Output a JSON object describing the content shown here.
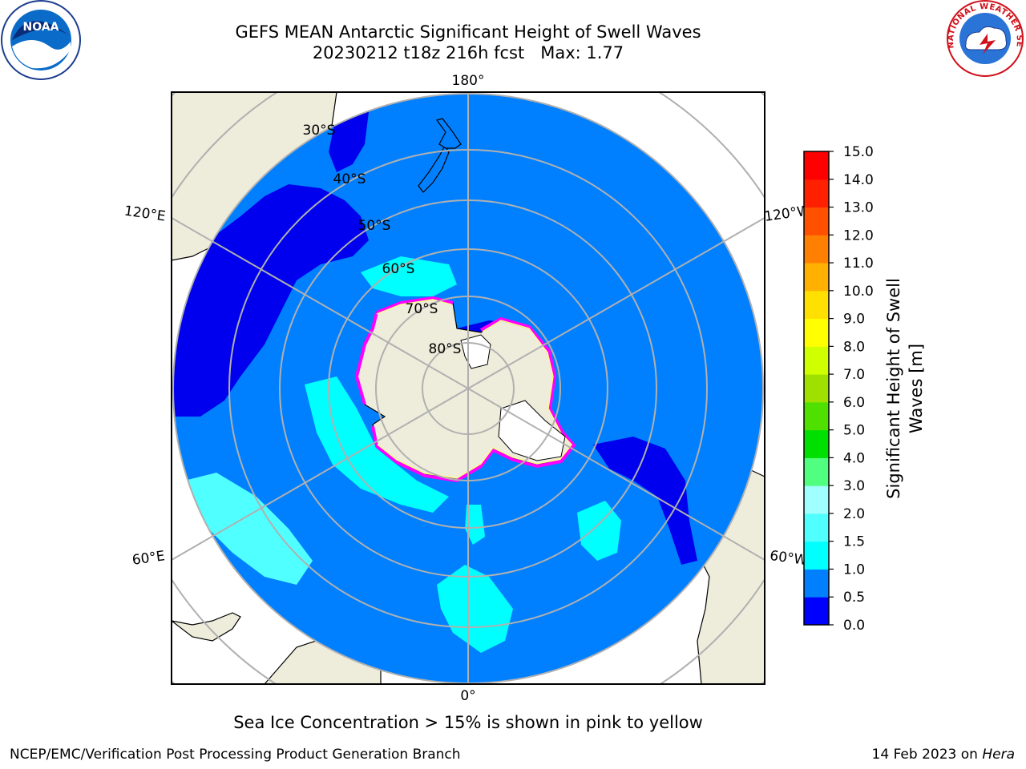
{
  "header": {
    "title_line1": "GEFS MEAN Antarctic Significant Height of Swell Waves",
    "title_line2": "20230212 t18z 216h fcst   Max: 1.77"
  },
  "logos": {
    "left": {
      "text": "NOAA",
      "icon": "noaa-logo-icon"
    },
    "right": {
      "text": "NATIONAL WEATHER SERVICE",
      "icon": "nws-logo-icon"
    }
  },
  "map": {
    "projection": "south-polar-stereographic",
    "longitude_labels": {
      "top": "180°",
      "bottom": "0°",
      "left_upper": "120°E",
      "left_lower": "60°E",
      "right_upper": "120°W",
      "right_lower": "60°W"
    },
    "latitude_labels": [
      "30°S",
      "40°S",
      "50°S",
      "60°S",
      "70°S",
      "80°S"
    ],
    "colors": {
      "land": "#eeecdb",
      "grid": "#b0b0b0",
      "ocean_main": "#0080ff",
      "ocean_low": "#0000ee",
      "ocean_mid": "#00ffff",
      "ocean_light": "#50ffff",
      "ice_pink": "#ff00ff",
      "ice_yellow": "#ffff00"
    }
  },
  "colorbar": {
    "label": "Significant Height of Swell Waves [m]",
    "label_line1": "Significant Height of Swell",
    "label_line2": "Waves [m]",
    "ticks": [
      "0.0",
      "0.5",
      "1.0",
      "1.5",
      "2.0",
      "3.0",
      "4.0",
      "5.0",
      "6.0",
      "7.0",
      "8.0",
      "9.0",
      "10.0",
      "11.0",
      "12.0",
      "13.0",
      "14.0",
      "15.0"
    ],
    "colors": [
      "#0000ff",
      "#0080ff",
      "#00ffff",
      "#50ffff",
      "#a0ffff",
      "#50ff80",
      "#00e000",
      "#50e000",
      "#a0e000",
      "#d0ff00",
      "#ffff00",
      "#ffe000",
      "#ffb000",
      "#ff8000",
      "#ff5000",
      "#ff2000",
      "#ff0000"
    ]
  },
  "footer": {
    "note": "Sea Ice Concentration > 15% is shown in pink to yellow",
    "left": "NCEP/EMC/Verification Post Processing Product Generation Branch",
    "right_date": "14 Feb 2023 on ",
    "right_host": "Hera"
  }
}
